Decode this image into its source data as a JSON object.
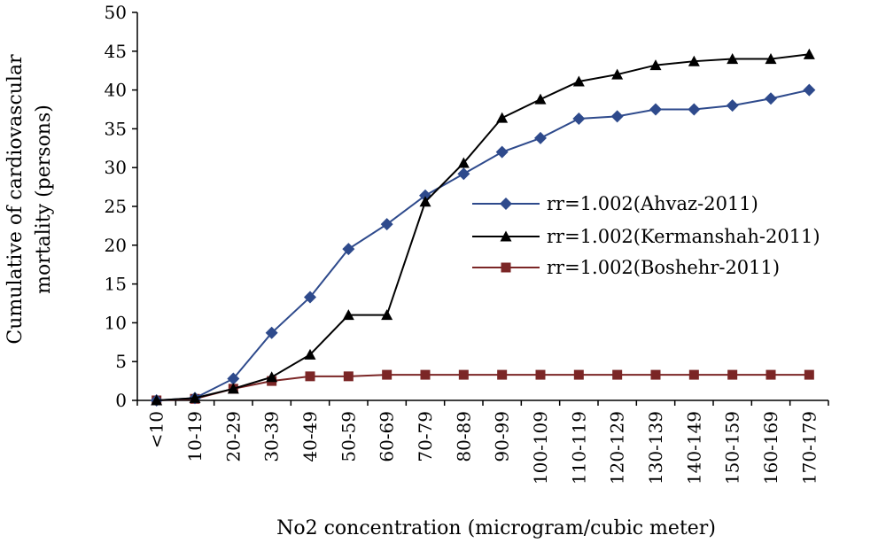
{
  "chart_data": {
    "type": "line",
    "xlabel": "No2 concentration (microgram/cubic meter)",
    "ylabel": [
      "Cumulative of cardiovascular",
      "mortality (persons)"
    ],
    "ylim": [
      0,
      50
    ],
    "yticks": [
      0,
      5,
      10,
      15,
      20,
      25,
      30,
      35,
      40,
      45,
      50
    ],
    "grid": false,
    "legend": "center-right",
    "categories": [
      "<10",
      "10-19",
      "20-29",
      "30-39",
      "40-49",
      "50-59",
      "60-69",
      "70-79",
      "80-89",
      "90-99",
      "100-109",
      "110-119",
      "120-129",
      "130-139",
      "140-149",
      "150-159",
      "160-169",
      "170-179"
    ],
    "series": [
      {
        "name": "rr=1.002(Ahvaz-2011)",
        "color": "#2E4A8C",
        "marker": "diamond",
        "values": [
          0,
          0.3,
          2.8,
          8.7,
          13.3,
          19.5,
          22.7,
          26.4,
          29.2,
          32.0,
          33.8,
          36.3,
          36.6,
          37.5,
          37.5,
          38.0,
          38.9,
          40.0
        ]
      },
      {
        "name": "rr=1.002(Kermanshah-2011)",
        "color": "#000000",
        "marker": "triangle",
        "values": [
          0,
          0.3,
          1.5,
          3.0,
          5.9,
          11.0,
          11.0,
          25.6,
          30.6,
          36.4,
          38.8,
          41.1,
          42.0,
          43.2,
          43.7,
          44.0,
          44.0,
          44.6
        ]
      },
      {
        "name": "rr=1.002(Boshehr-2011)",
        "color": "#7B2626",
        "marker": "square",
        "values": [
          0,
          0.2,
          1.5,
          2.5,
          3.1,
          3.1,
          3.3,
          3.3,
          3.3,
          3.3,
          3.3,
          3.3,
          3.3,
          3.3,
          3.3,
          3.3,
          3.3,
          3.3
        ]
      }
    ]
  }
}
